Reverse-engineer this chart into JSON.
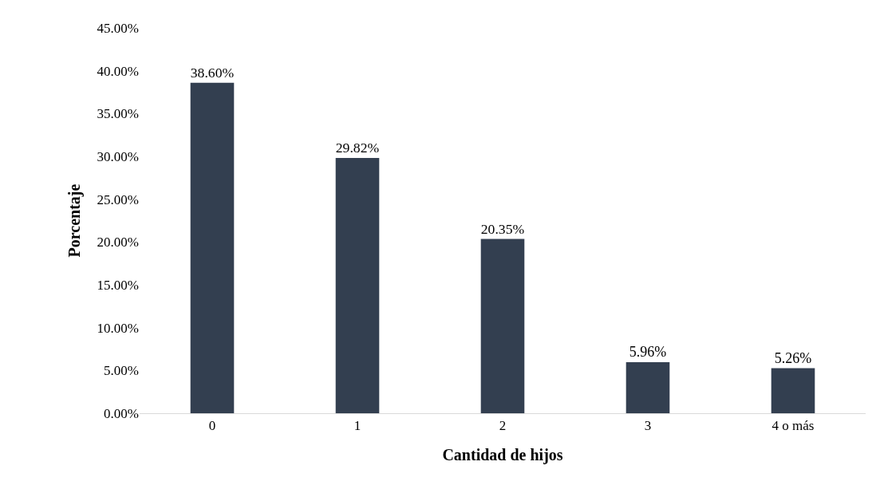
{
  "chart_data": {
    "type": "bar",
    "xlabel": "Cantidad de hijos",
    "ylabel": "Porcentaje",
    "categories": [
      "0",
      "1",
      "2",
      "3",
      "4 o más"
    ],
    "values": [
      38.6,
      29.82,
      20.35,
      5.96,
      5.26
    ],
    "value_labels": [
      "38.60%",
      "29.82%",
      "20.35%",
      "5.96%",
      "5.26%"
    ],
    "color": "#333f50",
    "ylim": [
      0,
      45
    ],
    "yticks": [
      {
        "value": 0,
        "label": "0.00%"
      },
      {
        "value": 5,
        "label": "5.00%"
      },
      {
        "value": 10,
        "label": "10.00%"
      },
      {
        "value": 15,
        "label": "15.00%"
      },
      {
        "value": 20,
        "label": "20.00%"
      },
      {
        "value": 25,
        "label": "25.00%"
      },
      {
        "value": 30,
        "label": "30.00%"
      },
      {
        "value": 35,
        "label": "35.00%"
      },
      {
        "value": 40,
        "label": "40.00%"
      },
      {
        "value": 45,
        "label": "45.00%"
      }
    ],
    "grid": false
  }
}
